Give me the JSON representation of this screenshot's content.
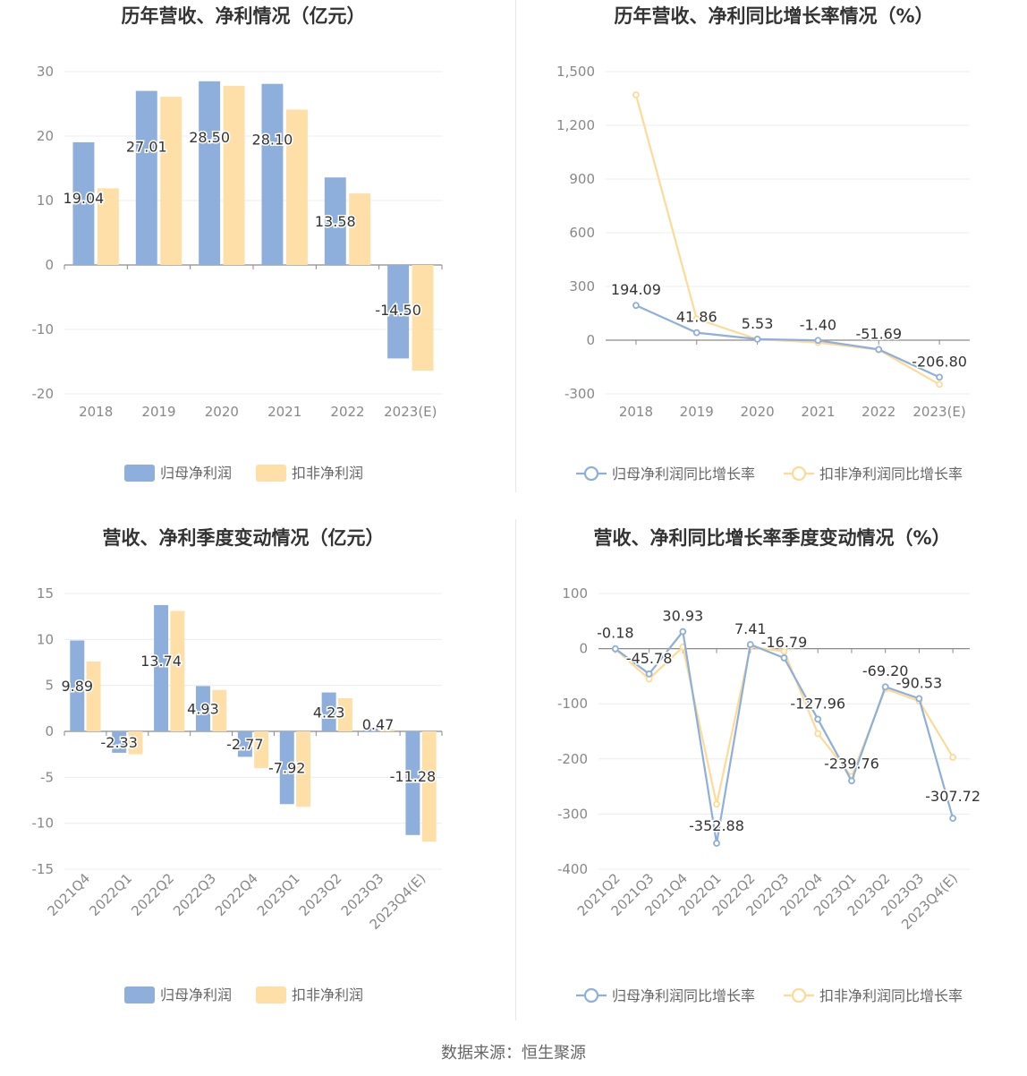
{
  "colors": {
    "primary": "#8eaedb",
    "secondary": "#fedfa7",
    "primary_line": "#8eaedb",
    "secondary_line": "#fddb96",
    "title": "#333333",
    "axis_text": "#888888",
    "grid": "#e9ecf5"
  },
  "source": "数据来源：恒生聚源",
  "chart_data": [
    {
      "type": "bar",
      "title": "历年营收、净利情况（亿元）",
      "categories": [
        "2018",
        "2019",
        "2020",
        "2021",
        "2022",
        "2023(E)"
      ],
      "ylim": [
        -20,
        30
      ],
      "yticks": [
        -20,
        -10,
        0,
        10,
        20,
        30
      ],
      "ytick_labels": [
        "-20",
        "-10",
        "0",
        "10",
        "20",
        "30"
      ],
      "series": [
        {
          "name": "归母净利润",
          "values": [
            19.04,
            27.01,
            28.5,
            28.1,
            13.58,
            -14.5
          ],
          "labels": [
            "19.04",
            "27.01",
            "28.50",
            "28.10",
            "13.58",
            "-14.50"
          ]
        },
        {
          "name": "扣非净利润",
          "values": [
            11.9,
            26.1,
            27.8,
            24.1,
            11.1,
            -16.4
          ]
        }
      ],
      "legend": "bottom",
      "grid": true
    },
    {
      "type": "line",
      "title": "历年营收、净利同比增长率情况（%）",
      "categories": [
        "2018",
        "2019",
        "2020",
        "2021",
        "2022",
        "2023(E)"
      ],
      "ylim": [
        -300,
        1500
      ],
      "yticks": [
        -300,
        0,
        300,
        600,
        900,
        1200,
        1500
      ],
      "ytick_labels": [
        "-300",
        "0",
        "300",
        "600",
        "900",
        "1,200",
        "1,500"
      ],
      "series": [
        {
          "name": "归母净利润同比增长率",
          "values": [
            194.09,
            41.86,
            5.53,
            -1.4,
            -51.69,
            -206.8
          ],
          "labels": [
            "194.09",
            "41.86",
            "5.53",
            "-1.40",
            "-51.69",
            "-206.80"
          ]
        },
        {
          "name": "扣非净利润同比增长率",
          "values": [
            1370,
            119,
            5,
            -13,
            -54,
            -247
          ]
        }
      ],
      "legend": "bottom",
      "grid": true
    },
    {
      "type": "bar",
      "title": "营收、净利季度变动情况（亿元）",
      "categories": [
        "2021Q4",
        "2022Q1",
        "2022Q2",
        "2022Q3",
        "2022Q4",
        "2023Q1",
        "2023Q2",
        "2023Q3",
        "2023Q4(E)"
      ],
      "ylim": [
        -15,
        15
      ],
      "yticks": [
        -15,
        -10,
        -5,
        0,
        5,
        10,
        15
      ],
      "ytick_labels": [
        "-15",
        "-10",
        "-5",
        "0",
        "5",
        "10",
        "15"
      ],
      "series": [
        {
          "name": "归母净利润",
          "values": [
            9.89,
            -2.33,
            13.74,
            4.93,
            -2.77,
            -7.92,
            4.23,
            0.47,
            -11.28
          ],
          "labels": [
            "9.89",
            "-2.33",
            "13.74",
            "4.93",
            "-2.77",
            "-7.92",
            "4.23",
            "0.47",
            "-11.28"
          ]
        },
        {
          "name": "扣非净利润",
          "values": [
            7.6,
            -2.5,
            13.1,
            4.5,
            -4.0,
            -8.2,
            3.6,
            0.2,
            -12.0
          ]
        }
      ],
      "legend": "bottom",
      "grid": true
    },
    {
      "type": "line",
      "title": "营收、净利同比增长率季度变动情况（%）",
      "categories": [
        "2021Q2",
        "2021Q3",
        "2021Q4",
        "2022Q1",
        "2022Q2",
        "2022Q3",
        "2022Q4",
        "2023Q1",
        "2023Q2",
        "2023Q3",
        "2023Q4(E)"
      ],
      "ylim": [
        -400,
        100
      ],
      "yticks": [
        -400,
        -300,
        -200,
        -100,
        0,
        100
      ],
      "ytick_labels": [
        "-400",
        "-300",
        "-200",
        "-100",
        "0",
        "100"
      ],
      "series": [
        {
          "name": "归母净利润同比增长率",
          "values": [
            -0.18,
            -45.78,
            30.93,
            -352.88,
            7.41,
            -16.79,
            -127.96,
            -239.76,
            -69.2,
            -90.53,
            -307.72
          ],
          "labels": [
            "-0.18",
            "-45.78",
            "30.93",
            "-352.88",
            "7.41",
            "-16.79",
            "-127.96",
            "-239.76",
            "-69.20",
            "-90.53",
            "-307.72"
          ]
        },
        {
          "name": "扣非净利润同比增长率",
          "values": [
            -1,
            -55,
            3,
            -282,
            3,
            -5,
            -154,
            -232,
            -73,
            -95,
            -197
          ]
        }
      ],
      "legend": "bottom",
      "grid": true
    }
  ]
}
